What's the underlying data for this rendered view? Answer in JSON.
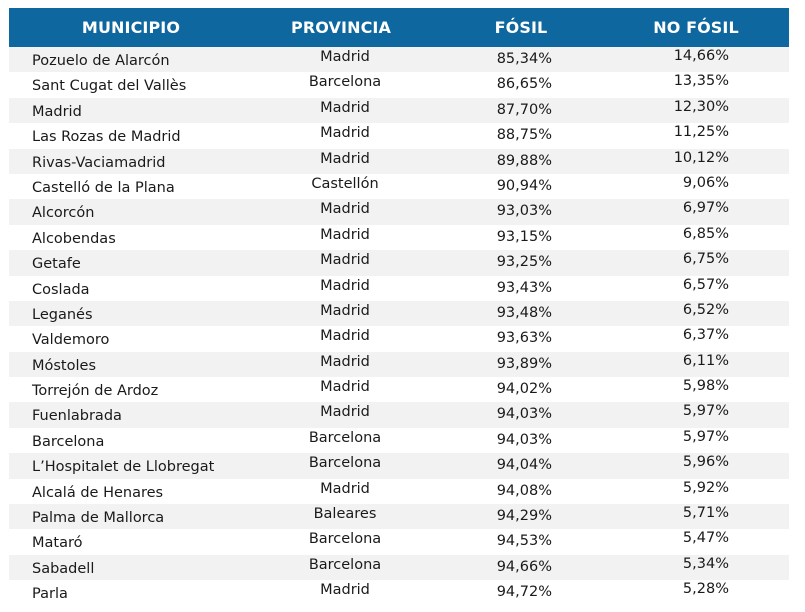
{
  "table": {
    "headers": {
      "municipio": "MUNICIPIO",
      "provincia": "PROVINCIA",
      "fosil": "FÓSIL",
      "no_fosil": "NO FÓSIL"
    },
    "rows": [
      {
        "municipio": "Pozuelo de Alarcón",
        "provincia": "Madrid",
        "fosil": "85,34%",
        "no_fosil": "14,66%"
      },
      {
        "municipio": "Sant Cugat del Vallès",
        "provincia": "Barcelona",
        "fosil": "86,65%",
        "no_fosil": "13,35%"
      },
      {
        "municipio": "Madrid",
        "provincia": "Madrid",
        "fosil": "87,70%",
        "no_fosil": "12,30%"
      },
      {
        "municipio": "Las Rozas de Madrid",
        "provincia": "Madrid",
        "fosil": "88,75%",
        "no_fosil": "11,25%"
      },
      {
        "municipio": "Rivas-Vaciamadrid",
        "provincia": "Madrid",
        "fosil": "89,88%",
        "no_fosil": "10,12%"
      },
      {
        "municipio": "Castelló de la Plana",
        "provincia": "Castellón",
        "fosil": "90,94%",
        "no_fosil": "9,06%"
      },
      {
        "municipio": "Alcorcón",
        "provincia": "Madrid",
        "fosil": "93,03%",
        "no_fosil": "6,97%"
      },
      {
        "municipio": "Alcobendas",
        "provincia": "Madrid",
        "fosil": "93,15%",
        "no_fosil": "6,85%"
      },
      {
        "municipio": "Getafe",
        "provincia": "Madrid",
        "fosil": "93,25%",
        "no_fosil": "6,75%"
      },
      {
        "municipio": "Coslada",
        "provincia": "Madrid",
        "fosil": "93,43%",
        "no_fosil": "6,57%"
      },
      {
        "municipio": "Leganés",
        "provincia": "Madrid",
        "fosil": "93,48%",
        "no_fosil": "6,52%"
      },
      {
        "municipio": "Valdemoro",
        "provincia": "Madrid",
        "fosil": "93,63%",
        "no_fosil": "6,37%"
      },
      {
        "municipio": "Móstoles",
        "provincia": "Madrid",
        "fosil": "93,89%",
        "no_fosil": "6,11%"
      },
      {
        "municipio": "Torrejón de Ardoz",
        "provincia": "Madrid",
        "fosil": "94,02%",
        "no_fosil": "5,98%"
      },
      {
        "municipio": "Fuenlabrada",
        "provincia": "Madrid",
        "fosil": "94,03%",
        "no_fosil": "5,97%"
      },
      {
        "municipio": "Barcelona",
        "provincia": "Barcelona",
        "fosil": "94,03%",
        "no_fosil": "5,97%"
      },
      {
        "municipio": "L’Hospitalet de Llobregat",
        "provincia": "Barcelona",
        "fosil": "94,04%",
        "no_fosil": "5,96%"
      },
      {
        "municipio": "Alcalá de Henares",
        "provincia": "Madrid",
        "fosil": "94,08%",
        "no_fosil": "5,92%"
      },
      {
        "municipio": "Palma de Mallorca",
        "provincia": "Baleares",
        "fosil": "94,29%",
        "no_fosil": "5,71%"
      },
      {
        "municipio": "Mataró",
        "provincia": "Barcelona",
        "fosil": "94,53%",
        "no_fosil": "5,47%"
      },
      {
        "municipio": "Sabadell",
        "provincia": "Barcelona",
        "fosil": "94,66%",
        "no_fosil": "5,34%"
      },
      {
        "municipio": "Parla",
        "provincia": "Madrid",
        "fosil": "94,72%",
        "no_fosil": "5,28%"
      }
    ]
  },
  "colors": {
    "header_bg": "#0e679f",
    "header_text": "#ffffff",
    "stripe_bg": "#f2f2f2",
    "text": "#1a1a1a"
  }
}
